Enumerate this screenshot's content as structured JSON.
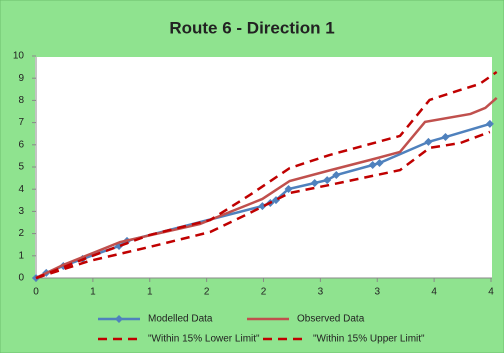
{
  "chart_data": {
    "type": "line",
    "title": "Route 6 - Direction 1",
    "xlim": [
      0,
      4
    ],
    "ylim": [
      0,
      10
    ],
    "xticks": [
      0,
      {
        "value": 0.5,
        "label": "1"
      },
      1,
      {
        "value": 1.5,
        "label": "2"
      },
      2,
      {
        "value": 2.5,
        "label": "3"
      },
      3,
      {
        "value": 3.5,
        "label": "4"
      },
      4
    ],
    "yticks": [
      0,
      1,
      2,
      3,
      4,
      5,
      6,
      7,
      8,
      9,
      10
    ],
    "grid": false,
    "series": [
      {
        "name": "Modelled Data",
        "color": "#4f81bd",
        "marker": "diamond",
        "dashed": false,
        "x": [
          0,
          0.09,
          0.24,
          0.41,
          0.73,
          0.8,
          1.99,
          2.06,
          2.11,
          2.22,
          2.45,
          2.56,
          2.64,
          2.96,
          3.02,
          3.45,
          3.6,
          3.99
        ],
        "values": [
          0,
          0.23,
          0.54,
          0.86,
          1.44,
          1.67,
          3.24,
          3.38,
          3.51,
          4.01,
          4.28,
          4.41,
          4.64,
          5.09,
          5.18,
          6.13,
          6.35,
          6.94
        ]
      },
      {
        "name": "Observed Data",
        "color": "#c0504d",
        "marker": "none",
        "dashed": false,
        "x": [
          0,
          0.24,
          0.74,
          1.44,
          1.99,
          2.23,
          2.59,
          2.94,
          3.2,
          3.42,
          3.82,
          3.95,
          4.05
        ],
        "values": [
          0,
          0.59,
          1.62,
          2.43,
          3.56,
          4.37,
          4.86,
          5.32,
          5.68,
          7.03,
          7.39,
          7.66,
          8.11
        ]
      },
      {
        "name": "\"Within 15% Lower Limit\"",
        "color": "#c00000",
        "marker": "none",
        "dashed": true,
        "x": [
          0,
          0.47,
          1.0,
          1.53,
          1.88,
          2.23,
          2.58,
          3.2,
          3.46,
          3.73,
          3.99
        ],
        "values": [
          0,
          0.77,
          1.4,
          2.07,
          2.93,
          3.83,
          4.19,
          4.86,
          5.86,
          6.08,
          6.58
        ]
      },
      {
        "name": "\"Within 15% Upper Limit\"",
        "color": "#c00000",
        "marker": "none",
        "dashed": true,
        "x": [
          0,
          0.47,
          1.0,
          1.53,
          1.88,
          2.23,
          2.58,
          3.2,
          3.46,
          3.73,
          3.9,
          4.05
        ],
        "values": [
          0,
          0.95,
          1.94,
          2.61,
          3.74,
          4.95,
          5.54,
          6.4,
          8.02,
          8.47,
          8.74,
          9.28
        ]
      }
    ]
  }
}
